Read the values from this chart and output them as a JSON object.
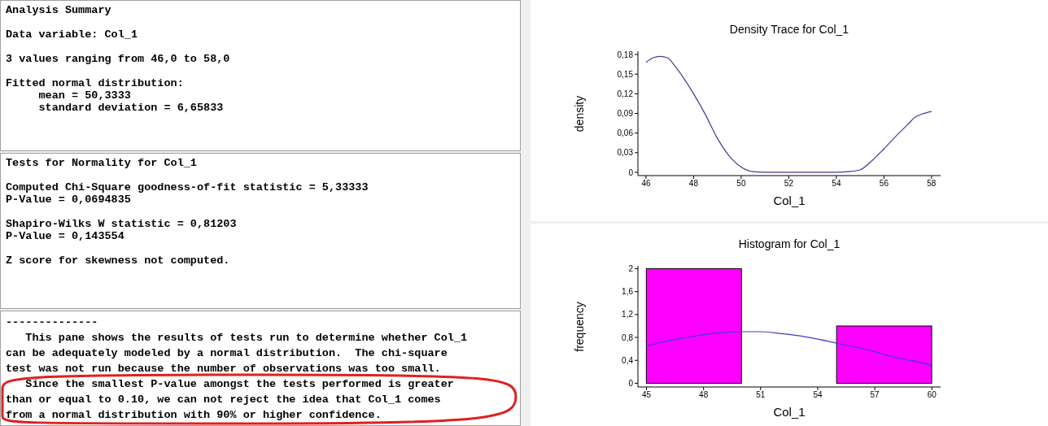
{
  "chart_data": [
    {
      "type": "other",
      "title": "Analysis Summary",
      "annotations": [
        "Data variable: Col_1",
        "3 values ranging from 46,0 to 58,0",
        "Fitted normal distribution:\n     mean = 50,3333\n     standard deviation = 6,65833"
      ]
    },
    {
      "type": "other",
      "title": "Tests for Normality for Col_1",
      "annotations": [
        "Computed Chi-Square goodness-of-fit statistic = 5,33333\nP-Value = 0,0694835",
        "Shapiro-Wilks W statistic = 0,81203\nP-Value = 0,143554",
        "Z score for skewness not computed."
      ]
    },
    {
      "type": "other",
      "annotations": [
        "--------------\n   This pane shows the results of tests run to determine whether Col_1\ncan be adequately modeled by a normal distribution.  The chi-square\ntest was not run because the number of observations was too small.\n   Since the smallest P-value amongst the tests performed is greater\nthan or equal to 0.10, we can not reject the idea that Col_1 comes\nfrom a normal distribution with 90% or higher confidence."
      ]
    },
    {
      "type": "line",
      "title": "Density Trace for Col_1",
      "xlabel": "Col_1",
      "ylabel": "density",
      "x": [
        46,
        46.3,
        46.6,
        46.9,
        47.2,
        47.6,
        48,
        48.5,
        49,
        49.5,
        50,
        50.5,
        51,
        52,
        53,
        54,
        54.5,
        55,
        55.5,
        56,
        56.5,
        57,
        57.3,
        57.6,
        58
      ],
      "series": [
        {
          "color": "#3c3c96",
          "values": [
            0.168,
            0.175,
            0.177,
            0.175,
            0.163,
            0.143,
            0.12,
            0.088,
            0.052,
            0.025,
            0.008,
            0.001,
            0,
            0,
            0,
            0,
            0.001,
            0.004,
            0.018,
            0.036,
            0.055,
            0.073,
            0.084,
            0.089,
            0.093
          ]
        }
      ],
      "xlim": [
        45.66,
        58.38
      ],
      "xticks": [
        46,
        48,
        50,
        52,
        54,
        56,
        58
      ],
      "ylim": [
        -0.005,
        0.185
      ],
      "yticks": [
        {
          "value": 0,
          "label": "0"
        },
        {
          "value": 0.03,
          "label": "0,03"
        },
        {
          "value": 0.06,
          "label": "0,06"
        },
        {
          "value": 0.09,
          "label": "0,09"
        },
        {
          "value": 0.12,
          "label": "0,12"
        },
        {
          "value": 0.15,
          "label": "0,15"
        },
        {
          "value": 0.18,
          "label": "0,18"
        }
      ],
      "grid": false,
      "legend": false,
      "marker": "none",
      "line_style": "solid"
    },
    {
      "type": "histogram",
      "title": "Histogram for Col_1",
      "xlabel": "Col_1",
      "ylabel": "frequency",
      "bins": [
        45,
        50,
        55,
        60
      ],
      "values": [
        2,
        0,
        1
      ],
      "color": "#ff00ff",
      "series": [
        {
          "type": "line",
          "color": "#3c3cc8",
          "x": [
            45,
            46,
            47,
            48,
            49,
            50,
            51,
            52,
            53,
            54,
            55,
            56,
            57,
            58,
            59,
            60
          ],
          "values": [
            0.65,
            0.73,
            0.79,
            0.85,
            0.88,
            0.9,
            0.9,
            0.87,
            0.83,
            0.77,
            0.7,
            0.63,
            0.55,
            0.46,
            0.39,
            0.31
          ]
        }
      ],
      "xlim": [
        44.55,
        60.46
      ],
      "xticks": [
        45,
        48,
        51,
        54,
        57,
        60
      ],
      "ylim": [
        -0.065,
        2.05
      ],
      "yticks": [
        0,
        {
          "value": 0.4,
          "label": "0,4"
        },
        {
          "value": 0.8,
          "label": "0,8"
        },
        {
          "value": 1.2,
          "label": "1,2"
        },
        {
          "value": 1.6,
          "label": "1,6"
        },
        2
      ],
      "grid": false,
      "legend": false,
      "marker": "none",
      "line_style": "solid"
    }
  ]
}
